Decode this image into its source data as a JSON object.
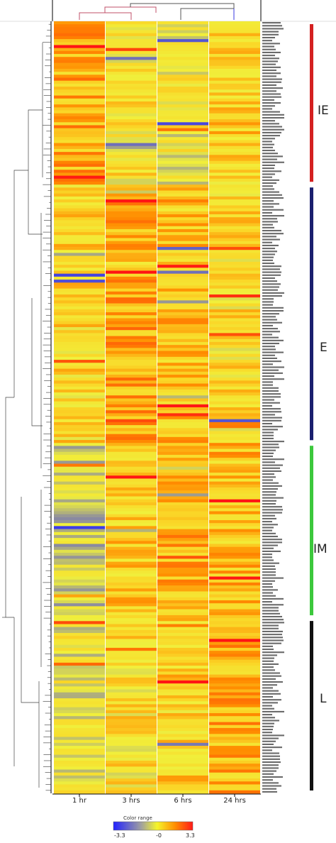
{
  "chart_data": {
    "type": "heatmap",
    "columns": [
      "1 hr",
      "3 hrs",
      "6 hrs",
      "24 hrs"
    ],
    "clusters": [
      {
        "label": "IE",
        "color": "#d42020",
        "rows": [
          0,
          54
        ]
      },
      {
        "label": "E",
        "color": "#1a1f6e",
        "rows": [
          55,
          141
        ]
      },
      {
        "label": "IM",
        "color": "#3cc83c",
        "rows": [
          142,
          200
        ]
      },
      {
        "label": "L",
        "color": "#111111",
        "rows": [
          201,
          259
        ]
      }
    ],
    "row_count": 260,
    "color_scale": {
      "min": -3.3,
      "mid": 0,
      "max": 3.3,
      "colors": [
        "#2222ff",
        "#9a9a9a",
        "#f5f52a",
        "#ff8c00",
        "#ff1a1a"
      ]
    },
    "legend": {
      "title": "Color range",
      "ticks": [
        "-3.3",
        "-0",
        "3.3"
      ]
    },
    "profiles": {
      "IE": [
        1.1,
        0.2,
        -0.2,
        0.5
      ],
      "E": [
        0.4,
        1.2,
        0.8,
        0.3
      ],
      "IM": [
        -0.9,
        0.6,
        1.0,
        0.8
      ],
      "L": [
        -0.3,
        0.2,
        0.5,
        1.0
      ]
    }
  }
}
